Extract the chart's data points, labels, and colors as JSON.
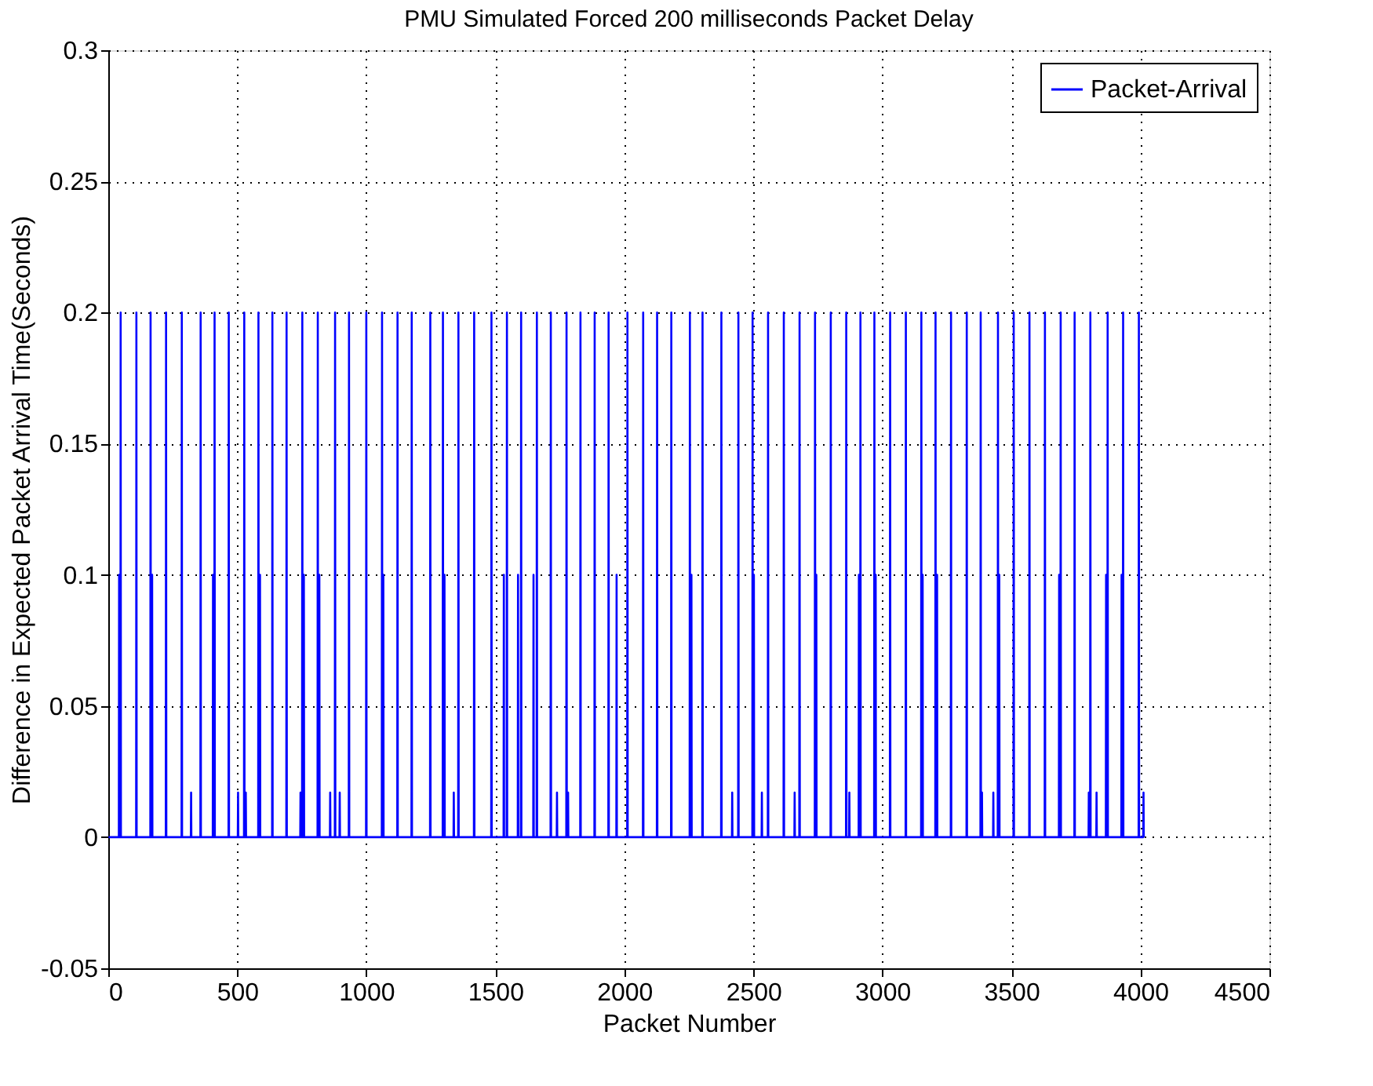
{
  "chart_data": {
    "type": "line",
    "title": "PMU Simulated Forced 200 milliseconds Packet Delay",
    "xlabel": "Packet Number",
    "ylabel": "Difference in Expected Packet Arrival Time(Seconds)",
    "xlim": [
      0,
      4500
    ],
    "xticks": [
      0,
      500,
      1000,
      1500,
      2000,
      2500,
      3000,
      3500,
      4000,
      4500
    ],
    "ylim": [
      -0.05,
      0.3
    ],
    "yticks": [
      -0.05,
      0,
      0.05,
      0.1,
      0.15,
      0.2,
      0.25,
      0.3
    ],
    "grid": true,
    "legend": "top right",
    "marker": "none",
    "line_style": "solid",
    "series": [
      {
        "name": "Packet-Arrival",
        "color": "#0000ff",
        "x": [
          1,
          41,
          42,
          43,
          47,
          48,
          49,
          108,
          109,
          110,
          163,
          164,
          165,
          169,
          170,
          171,
          223,
          224,
          225,
          284,
          285,
          286,
          320,
          321,
          322,
          357,
          358,
          359,
          405,
          406,
          407,
          411,
          412,
          413,
          466,
          467,
          468,
          502,
          503,
          504,
          526,
          527,
          528,
          532,
          533,
          534,
          581,
          582,
          583,
          587,
          588,
          589,
          635,
          636,
          637,
          690,
          691,
          692,
          744,
          745,
          746,
          751,
          752,
          753,
          757,
          758,
          759,
          811,
          812,
          813,
          817,
          818,
          819,
          859,
          860,
          861,
          878,
          879,
          880,
          896,
          897,
          898,
          932,
          933,
          934,
          999,
          1000,
          1001,
          1060,
          1061,
          1062,
          1065,
          1066,
          1067,
          1120,
          1121,
          1122,
          1175,
          1176,
          1177,
          1247,
          1248,
          1249,
          1296,
          1297,
          1298,
          1302,
          1303,
          1304,
          1338,
          1339,
          1340,
          1356,
          1357,
          1358,
          1417,
          1418,
          1419,
          1484,
          1485,
          1486,
          1532,
          1533,
          1534,
          1544,
          1545,
          1546,
          1587,
          1588,
          1589,
          1599,
          1600,
          1601,
          1647,
          1648,
          1649,
          1660,
          1661,
          1662,
          1714,
          1715,
          1716,
          1738,
          1739,
          1740,
          1775,
          1776,
          1777,
          1781,
          1782,
          1783,
          1829,
          1830,
          1831,
          1884,
          1885,
          1886,
          1938,
          1939,
          1940,
          1969,
          1970,
          1971,
          2011,
          2012,
          2013,
          2072,
          2073,
          2074,
          2126,
          2127,
          2128,
          2181,
          2182,
          2183,
          2253,
          2254,
          2255,
          2259,
          2260,
          2261,
          2302,
          2303,
          2304,
          2375,
          2376,
          2377,
          2417,
          2418,
          2419,
          2441,
          2442,
          2443,
          2496,
          2497,
          2498,
          2501,
          2502,
          2503,
          2532,
          2533,
          2534,
          2556,
          2557,
          2558,
          2617,
          2618,
          2619,
          2659,
          2660,
          2661,
          2678,
          2679,
          2680,
          2738,
          2739,
          2740,
          2743,
          2744,
          2745,
          2799,
          2800,
          2801,
          2859,
          2860,
          2861,
          2871,
          2872,
          2873,
          2908,
          2909,
          2910,
          2914,
          2915,
          2916,
          2968,
          2969,
          2970,
          2973,
          2974,
          2975,
          3029,
          3030,
          3031,
          3090,
          3091,
          3092,
          3150,
          3151,
          3152,
          3155,
          3156,
          3157,
          3205,
          3206,
          3207,
          3211,
          3212,
          3213,
          3265,
          3266,
          3267,
          3326,
          3327,
          3328,
          3380,
          3381,
          3382,
          3385,
          3386,
          3387,
          3429,
          3430,
          3431,
          3447,
          3448,
          3449,
          3452,
          3453,
          3454,
          3508,
          3509,
          3510,
          3569,
          3570,
          3571,
          3629,
          3630,
          3631,
          3684,
          3685,
          3686,
          3690,
          3691,
          3692,
          3744,
          3745,
          3746,
          3799,
          3800,
          3801,
          3805,
          3806,
          3807,
          3829,
          3830,
          3831,
          3866,
          3867,
          3868,
          3872,
          3873,
          3874,
          3926,
          3927,
          3928,
          3932,
          3933,
          3934,
          3993,
          3994,
          3995,
          4011,
          4012,
          4013
        ],
        "values": [
          0,
          0,
          0.1,
          0,
          0,
          0.2,
          0,
          0,
          0.2,
          0,
          0,
          0.2,
          0,
          0,
          0.1,
          0,
          0,
          0.2,
          0,
          0,
          0.2,
          0,
          0,
          0.017,
          0,
          0,
          0.2,
          0,
          0,
          0.1,
          0,
          0,
          0.2,
          0,
          0,
          0.2,
          0,
          0,
          0.017,
          0,
          0,
          0.2,
          0,
          0,
          0.017,
          0,
          0,
          0.2,
          0,
          0,
          0.1,
          0,
          0,
          0.2,
          0,
          0,
          0.2,
          0,
          0,
          0.017,
          0,
          0,
          0.2,
          0,
          0,
          0.1,
          0,
          0,
          0.2,
          0,
          0,
          0.1,
          0,
          0,
          0.017,
          0,
          0,
          0.2,
          0,
          0,
          0.017,
          0,
          0,
          0.2,
          0,
          0,
          0.2,
          0,
          0,
          0.2,
          0,
          0,
          0.1,
          0,
          0,
          0.2,
          0,
          0,
          0.2,
          0,
          0,
          0.2,
          0,
          0,
          0.2,
          0,
          0,
          0.1,
          0,
          0,
          0.017,
          0,
          0,
          0.2,
          0,
          0,
          0.2,
          0,
          0,
          0.2,
          0,
          0,
          0.1,
          0,
          0,
          0.2,
          0,
          0,
          0.1,
          0,
          0,
          0.2,
          0,
          0,
          0.1,
          0,
          0,
          0.2,
          0,
          0,
          0.2,
          0,
          0,
          0.017,
          0,
          0,
          0.2,
          0,
          0,
          0.017,
          0,
          0,
          0.2,
          0,
          0,
          0.2,
          0,
          0,
          0.2,
          0,
          0,
          0.1,
          0,
          0,
          0.2,
          0,
          0,
          0.2,
          0,
          0,
          0.2,
          0,
          0,
          0.2,
          0,
          0,
          0.2,
          0,
          0,
          0.1,
          0,
          0,
          0.2,
          0,
          0,
          0.2,
          0,
          0,
          0.017,
          0,
          0,
          0.2,
          0,
          0,
          0.2,
          0,
          0,
          0.1,
          0,
          0,
          0.017,
          0,
          0,
          0.2,
          0,
          0,
          0.2,
          0,
          0,
          0.017,
          0,
          0,
          0.2,
          0,
          0,
          0.2,
          0,
          0,
          0.1,
          0,
          0,
          0.2,
          0,
          0,
          0.2,
          0,
          0,
          0.017,
          0,
          0,
          0.1,
          0,
          0,
          0.2,
          0,
          0,
          0.2,
          0,
          0,
          0.1,
          0,
          0,
          0.2,
          0,
          0,
          0.2,
          0,
          0,
          0.2,
          0,
          0,
          0.1,
          0,
          0,
          0.2,
          0,
          0,
          0.1,
          0,
          0,
          0.2,
          0,
          0,
          0.2,
          0,
          0,
          0.2,
          0,
          0,
          0.017,
          0,
          0,
          0.017,
          0,
          0,
          0.2,
          0,
          0,
          0.1,
          0,
          0,
          0.2,
          0,
          0,
          0.2,
          0,
          0,
          0.2,
          0,
          0,
          0.1,
          0,
          0,
          0.2,
          0,
          0,
          0.2,
          0,
          0,
          0.017,
          0,
          0,
          0.2,
          0,
          0,
          0.017,
          0,
          0,
          0.1,
          0,
          0,
          0.2,
          0,
          0,
          0.1,
          0,
          0,
          0.2,
          0,
          0,
          0.2,
          0,
          0,
          0.017,
          0
        ]
      }
    ]
  }
}
